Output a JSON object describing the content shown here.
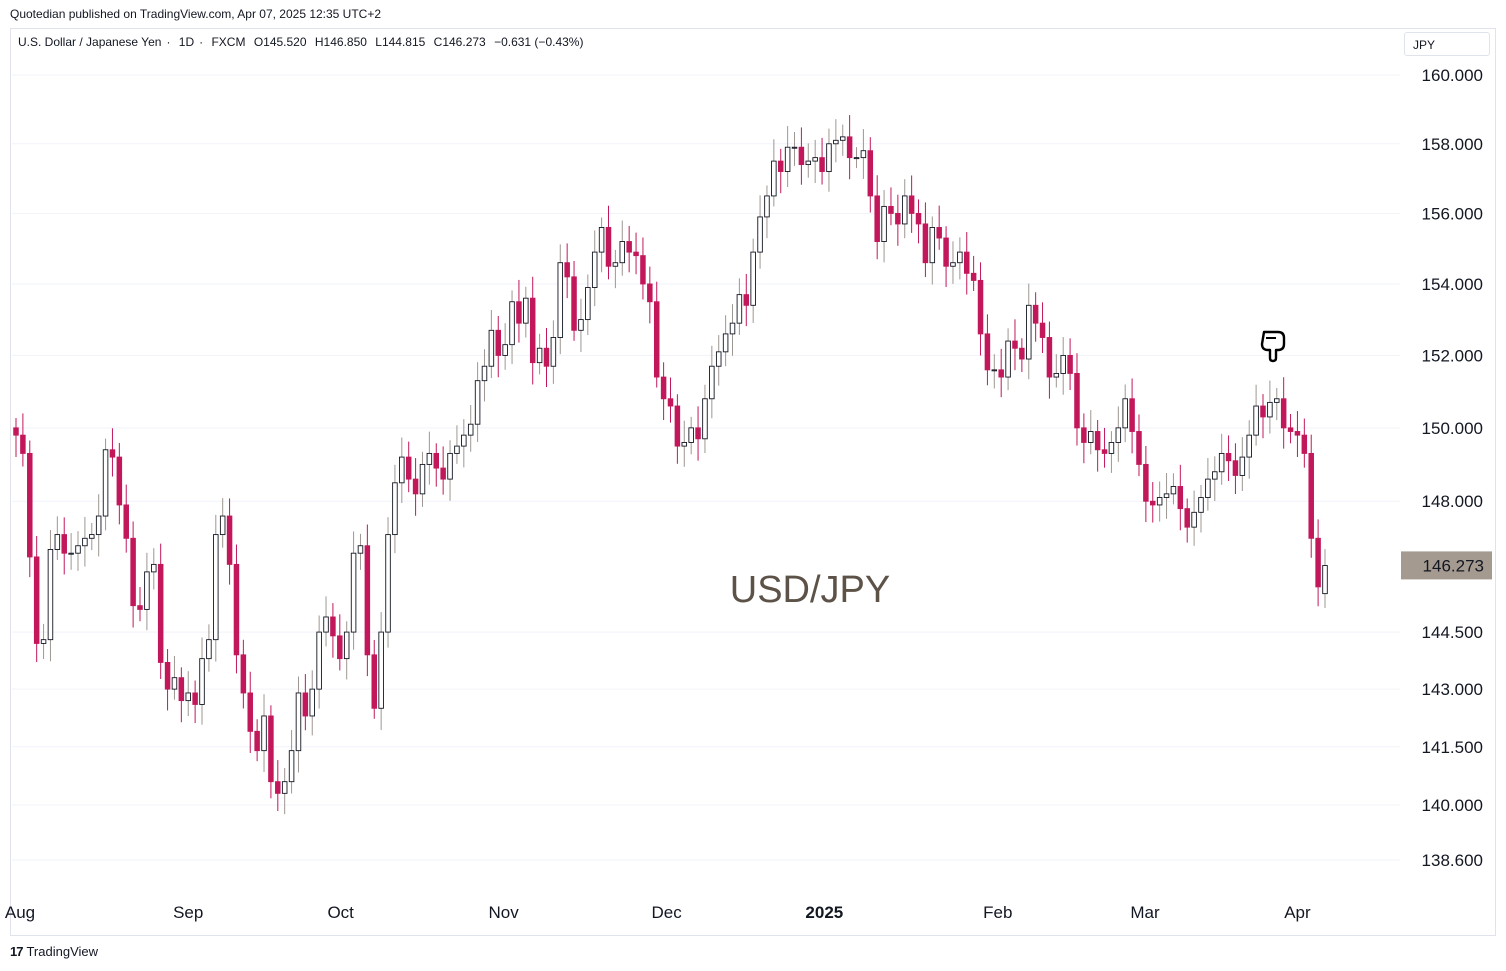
{
  "publisher_line": "Quotedian published on TradingView.com, Apr 07, 2025 12:35 UTC+2",
  "symbol": {
    "name": "U.S. Dollar / Japanese Yen",
    "interval": "1D",
    "exchange": "FXCM",
    "open": "O145.520",
    "high": "H146.850",
    "low": "L144.815",
    "close": "C146.273",
    "change": "−0.631 (−0.43%)"
  },
  "currency_label": "JPY",
  "watermark": "USD/JPY",
  "footer_brand": "TradingView",
  "colors": {
    "down": "#c2185b",
    "up": "#9e9791",
    "last_price_bg": "#a49a90",
    "watermark": "#5d5248",
    "grid": "#f0f3fa"
  },
  "chart_data": {
    "type": "candlestick",
    "title": "USD/JPY",
    "ylabel": "JPY",
    "ylim": [
      138.0,
      160.5
    ],
    "y_scale": "log",
    "y_ticks": [
      {
        "value": 160.0,
        "label": "160.000"
      },
      {
        "value": 158.0,
        "label": "158.000"
      },
      {
        "value": 156.0,
        "label": "156.000"
      },
      {
        "value": 154.0,
        "label": "154.000"
      },
      {
        "value": 152.0,
        "label": "152.000"
      },
      {
        "value": 150.0,
        "label": "150.000"
      },
      {
        "value": 148.0,
        "label": "148.000"
      },
      {
        "value": 144.5,
        "label": "144.500"
      },
      {
        "value": 143.0,
        "label": "143.000"
      },
      {
        "value": 141.5,
        "label": "141.500"
      },
      {
        "value": 140.0,
        "label": "140.000"
      },
      {
        "value": 138.6,
        "label": "138.600"
      }
    ],
    "x_ticks": [
      {
        "date": "2024-08-01",
        "label": "Aug",
        "bold": false
      },
      {
        "date": "2024-09-02",
        "label": "Sep",
        "bold": false
      },
      {
        "date": "2024-10-01",
        "label": "Oct",
        "bold": false
      },
      {
        "date": "2024-11-01",
        "label": "Nov",
        "bold": false
      },
      {
        "date": "2024-12-02",
        "label": "Dec",
        "bold": false
      },
      {
        "date": "2025-01-01",
        "label": "2025",
        "bold": true
      },
      {
        "date": "2025-02-03",
        "label": "Feb",
        "bold": false
      },
      {
        "date": "2025-03-03",
        "label": "Mar",
        "bold": false
      },
      {
        "date": "2025-04-01",
        "label": "Apr",
        "bold": false
      }
    ],
    "last_price": {
      "value": 146.273,
      "label": "146.273"
    },
    "closes": [
      149.8,
      149.3,
      146.5,
      144.2,
      144.3,
      146.7,
      147.1,
      146.6,
      146.6,
      146.8,
      147.0,
      147.1,
      147.6,
      149.4,
      149.2,
      147.9,
      147.0,
      145.2,
      145.1,
      146.1,
      146.3,
      143.7,
      143.0,
      143.3,
      142.7,
      142.9,
      142.6,
      143.8,
      144.3,
      147.1,
      147.6,
      146.3,
      143.9,
      142.9,
      141.9,
      141.4,
      142.3,
      140.6,
      140.3,
      140.6,
      141.4,
      142.9,
      142.3,
      143.0,
      144.5,
      144.9,
      144.4,
      143.8,
      144.5,
      146.6,
      146.8,
      143.9,
      142.5,
      144.5,
      147.1,
      148.5,
      149.2,
      148.6,
      148.2,
      149.0,
      149.3,
      148.9,
      148.6,
      149.3,
      149.5,
      149.8,
      150.1,
      151.3,
      151.7,
      152.7,
      152.0,
      152.3,
      153.5,
      152.9,
      153.6,
      151.8,
      152.2,
      151.7,
      152.5,
      154.6,
      154.2,
      152.7,
      153.0,
      153.9,
      154.9,
      155.6,
      154.5,
      154.6,
      155.2,
      154.9,
      154.8,
      154.0,
      153.5,
      151.4,
      150.8,
      150.6,
      149.5,
      149.6,
      150.0,
      149.7,
      150.8,
      151.7,
      152.1,
      152.6,
      152.9,
      153.7,
      153.4,
      154.9,
      155.9,
      156.5,
      157.5,
      157.2,
      157.9,
      157.9,
      157.4,
      157.5,
      157.6,
      157.2,
      158.0,
      158.1,
      158.2,
      157.6,
      157.6,
      157.8,
      156.5,
      155.2,
      156.2,
      156.0,
      155.7,
      156.5,
      156.0,
      155.7,
      154.6,
      155.6,
      155.3,
      154.5,
      154.6,
      154.9,
      154.3,
      154.1,
      152.6,
      151.6,
      151.6,
      151.4,
      152.4,
      152.2,
      151.9,
      153.4,
      152.9,
      152.5,
      151.4,
      151.5,
      152.0,
      151.5,
      150.0,
      149.6,
      149.9,
      149.4,
      149.3,
      149.6,
      150.0,
      150.8,
      149.9,
      149.0,
      148.0,
      147.9,
      148.1,
      148.2,
      148.4,
      147.8,
      147.3,
      147.7,
      148.1,
      148.6,
      148.8,
      149.3,
      149.1,
      148.7,
      149.2,
      149.8,
      150.6,
      150.3,
      150.7,
      150.8,
      150.0,
      149.9,
      149.8,
      149.3,
      147.0,
      145.7,
      146.27
    ]
  }
}
